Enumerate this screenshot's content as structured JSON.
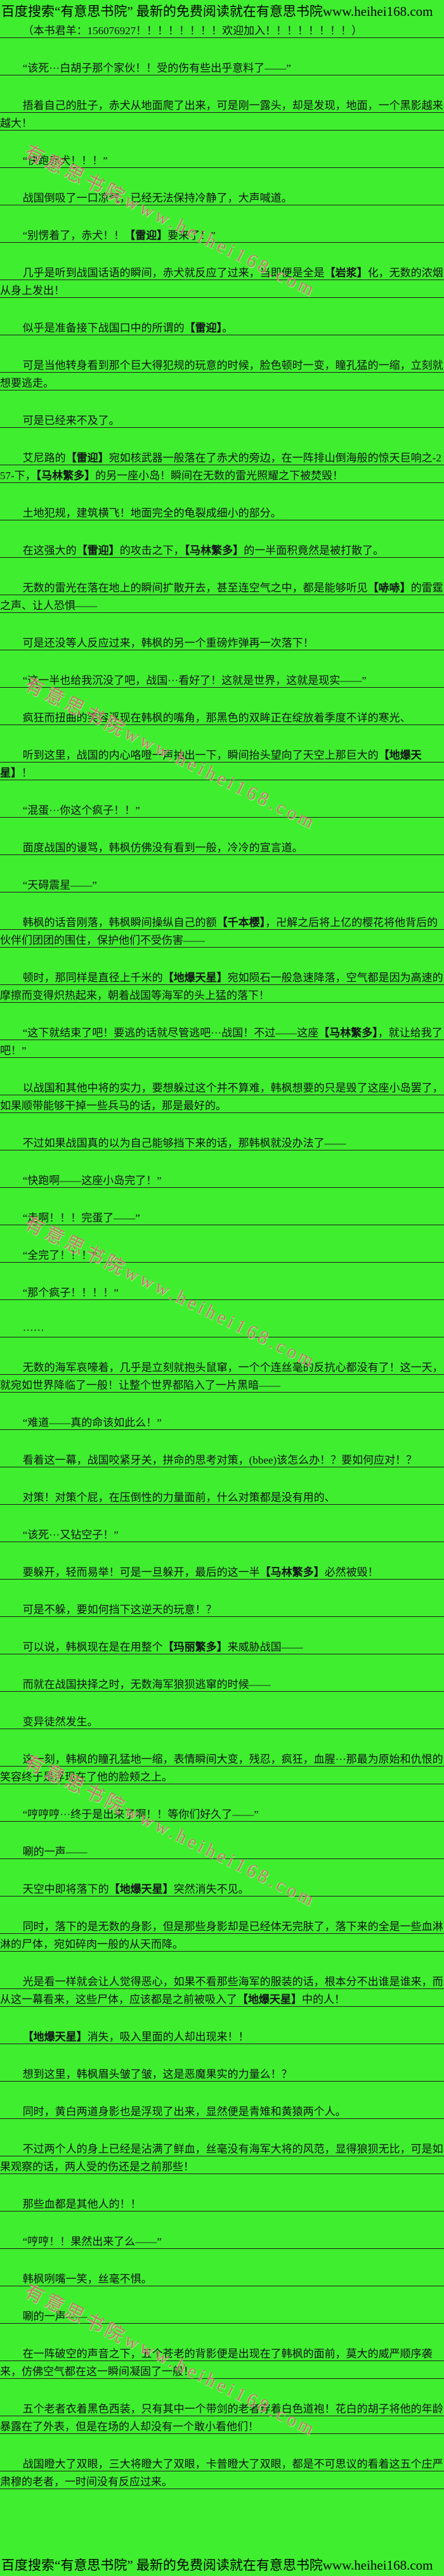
{
  "page": {
    "promo_header": "百度搜索“有意思书院” 最新的免费阅读就在有意思书院www.heihei168.com",
    "promo_footer": "百度搜索“有意思书院” 最新的免费阅读就在有意思书院www.heihei168.com"
  },
  "colors": {
    "background": "#40EE30",
    "text": "#121418",
    "underline": "#1c1c1c",
    "watermark": "#d86a6a"
  },
  "watermark": {
    "text": "有意思书院www.heihei168.com",
    "positions_y": [
      215,
      1055,
      1905,
      2755,
      3590
    ]
  },
  "paragraphs": [
    "（本书君羊：156076927！！！！！！！！欢迎加入！！！！！！！！）",
    "“该死···白胡子那个家伙！！受的伤有些出乎意料了——”",
    "捂着自己的肚子，赤犬从地面爬了出来，可是刚一露头，却是发现，地面，一个黑影越来越大！",
    "“快跑赤犬！！！”",
    "战国倒吸了一口凉气，已经无法保持冷静了，大声喊道。",
    "“别愣着了，赤犬！！【雷迎】要来了！”",
    "几乎是听到战国话语的瞬间，赤犬就反应了过来，当即便是全是【岩浆】化，无数的浓烟从身上发出！",
    "似乎是准备接下战国口中的所谓的【雷迎】。",
    "可是当他转身看到那个巨大得犯规的玩意的时候，脸色顿时一变，瞳孔猛的一缩，立刻就想要逃走。",
    "可是已经来不及了。",
    "艾尼路的【雷迎】宛如核武器一般落在了赤犬的旁边，在一阵排山倒海般的惊天巨响之-257-下，【马林繁多】的另一座小岛！瞬间在无数的雷光照耀之下被焚毁！",
    "土地犯规，建筑横飞！地面完全的龟裂成细小的部分。",
    "在这强大的【雷迎】的攻击之下，【马林繁多】的一半面积竟然是被打散了。",
    "无数的雷光在落在地上的瞬间扩散开去，甚至连空气之中，都是能够听见【哧哧】的雷霆之声、让人恐惧——",
    "可是还没等人反应过来，韩枫的另一个重磅炸弹再一次落下！",
    "“这一半也给我沉没了吧，战国···看好了！这就是世界，这就是现实——”",
    "疯狂而扭曲的笑容浮现在韩枫的嘴角，那黑色的双眸正在绽放着季度不详的寒光、",
    "听到这里，战国的内心咯噔一声抽出一下，瞬间抬头望向了天空上那巨大的【地爆天星】！",
    "“混蛋···你这个疯子！！”",
    "面度战国的谩骂，韩枫仿佛没有看到一般，冷冷的宣言道。",
    "“天碍震星——”",
    "韩枫的话音刚落，韩枫瞬间操纵自己的额【千本樱】，卍解之后将上亿的樱花将他背后的伙伴们团团的围住，保护他们不受伤害——",
    "顿时，那同样是直径上千米的【地爆天星】宛如陨石一般急速降落，空气都是因为高速的摩擦而变得炽热起来，朝着战国等海军的头上猛的落下！",
    "“这下就结束了吧！要逃的话就尽管逃吧···战国！不过——这座【马林繁多】，就让给我了吧！”",
    "以战国和其他中将的实力，要想躲过这个并不算难，韩枫想要的只是毁了这座小岛罢了，如果顺带能够干掉一些兵马的话，那是最好的。",
    "不过如果战国真的以为自己能够挡下来的话，那韩枫就没办法了——",
    "“快跑啊——这座小岛完了！”",
    "“走啊！！！完蛋了——”",
    "“全完了！！！”",
    "“那个疯子！！！！”",
    "······",
    "无数的海军哀嚎着，几乎是立刻就抱头鼠窜，一个个连丝毫的反抗心都没有了！这一天，就宛如世界降临了一般！让整个世界都陷入了一片黑暗——",
    "“难道——真的命该如此么！”",
    "看着这一幕，战国咬紧牙关，拼命的思考对策，(bbee)该怎么办！？要如何应对！？",
    "对策！对策个屁，在压倒性的力量面前，什么对策都是没有用的、",
    "“该死···又钻空子！”",
    "要躲开，轻而易举！可是一旦躲开，最后的这一半【马林繁多】必然被毁！",
    "可是不躲，要如何挡下这逆天的玩意！？",
    "可以说，韩枫现在是在用整个【玛丽繁多】来威胁战国——",
    "而就在战国抉择之时，无数海军狼狈逃窜的时候——",
    "变异徒然发生。",
    "这一刻，韩枫的瞳孔猛地一缩，表情瞬间大变，残忍，疯狂，血腥···那最为原始和仇恨的笑容终于是浮现在了他的脸颊之上。",
    "“哼哼哼···终于是出来了啊！！等你们好久了——”",
    "唰的一声——",
    "天空中即将落下的【地爆天星】突然消失不见。",
    "同时，落下的是无数的身影，但是那些身影却是已经体无完肤了，落下来的全是一些血淋淋的尸体，宛如碎肉一般的从天而降。",
    "光是看一样就会让人觉得恶心，如果不看那些海军的服装的话，根本分不出谁是谁来，而从这一幕看来，这些尸体，应该都是之前被吸入了【地爆天星】中的人！",
    "【地爆天星】消失，吸入里面的人却出现来！！",
    "想到这里，韩枫眉头皱了皱，这是恶魔果实的力量么！？",
    "同时，黄白两道身影也是浮现了出来，显然便是青雉和黄猿两个人。",
    "不过两个人的身上已经是沾满了鲜血，丝毫没有海军大将的风范，显得狼狈无比，可是如果观察的话，两人受的伤还是之前那些！",
    "那些血都是其他人的！！",
    "“哼哼！！果然出来了么——”",
    "韩枫咧嘴一笑，丝毫不惧。",
    "唰的一声——",
    "在一阵破空的声音之下，五个苍老的背影便是出现在了韩枫的面前，莫大的威严顺序袭来，仿佛空气都在这一瞬间凝固了一般！",
    "五个老者衣着黑色西装，只有其中一个带剑的老者穿着白色道袍！花白的胡子将他的年龄暴露在了外表，但是在场的人却没有一个敢小看他们！",
    "战国瞪大了双眼，三大将瞪大了双眼，卡普瞪大了双眼，都是不可思议的看着这五个庄严肃穆的老者，一时间没有反应过来。"
  ]
}
